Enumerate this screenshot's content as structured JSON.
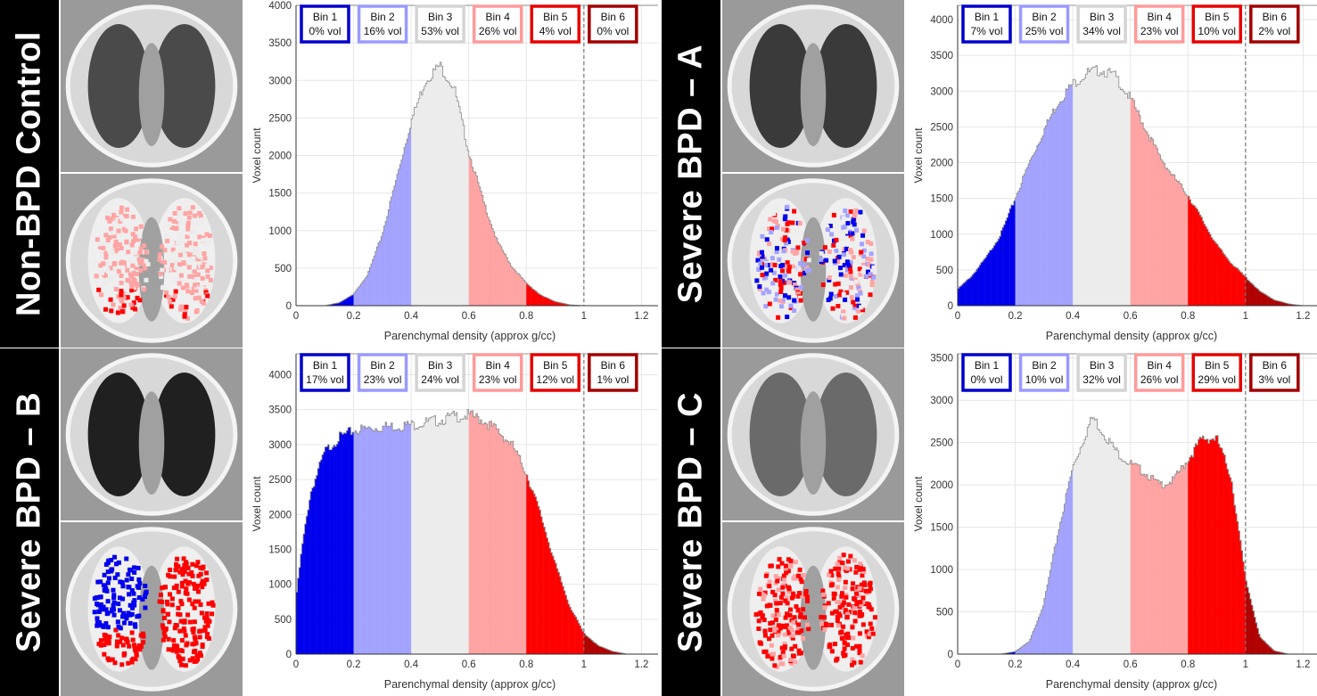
{
  "common": {
    "xlabel": "Parenchymal density (approx g/cc)",
    "ylabel": "Voxel count",
    "xticks": [
      "0",
      "0.2",
      "0.4",
      "0.6",
      "0.8",
      "1",
      "1.2"
    ],
    "bin_colors": [
      "#0000ee",
      "#a3a3ff",
      "#ececec",
      "#ffa3a3",
      "#ff0000",
      "#b00000"
    ],
    "bin_box_colors": [
      "#0000cc",
      "#9a9aff",
      "#d4d4d4",
      "#ff9a9a",
      "#e60000",
      "#a00000"
    ]
  },
  "chart_data": [
    {
      "type": "bar",
      "panel": "Non-BPD Control",
      "title": "",
      "xlabel": "Parenchymal density (approx g/cc)",
      "ylabel": "Voxel count",
      "xlim": [
        0,
        1.27
      ],
      "ylim": [
        0,
        4000
      ],
      "ytick_labels": [
        "0",
        "500",
        "1000",
        "1500",
        "2000",
        "2500",
        "3000",
        "3500",
        "4000"
      ],
      "bins": [
        {
          "name": "Bin 1",
          "label": "0% vol",
          "range": [
            0,
            0.2
          ]
        },
        {
          "name": "Bin 2",
          "label": "16% vol",
          "range": [
            0.2,
            0.4
          ]
        },
        {
          "name": "Bin 3",
          "label": "53% vol",
          "range": [
            0.4,
            0.6
          ]
        },
        {
          "name": "Bin 4",
          "label": "26% vol",
          "range": [
            0.6,
            0.8
          ]
        },
        {
          "name": "Bin 5",
          "label": "4% vol",
          "range": [
            0.8,
            1.0
          ]
        },
        {
          "name": "Bin 6",
          "label": "0% vol",
          "range": [
            1.0,
            1.27
          ]
        }
      ],
      "histogram_x": [
        0.1,
        0.15,
        0.2,
        0.25,
        0.3,
        0.35,
        0.4,
        0.45,
        0.5,
        0.55,
        0.6,
        0.65,
        0.7,
        0.75,
        0.8,
        0.85,
        0.9,
        0.95,
        1.0
      ],
      "histogram_y": [
        0,
        40,
        150,
        420,
        950,
        1700,
        2450,
        3000,
        3200,
        2900,
        2050,
        1400,
        850,
        520,
        300,
        140,
        55,
        12,
        0
      ]
    },
    {
      "type": "bar",
      "panel": "Severe BPD – A",
      "title": "",
      "xlabel": "Parenchymal density (approx g/cc)",
      "ylabel": "Voxel count",
      "xlim": [
        0,
        1.27
      ],
      "ylim": [
        0,
        4200
      ],
      "ytick_labels": [
        "0",
        "500",
        "1000",
        "1500",
        "2000",
        "2500",
        "3000",
        "3500",
        "4000"
      ],
      "bins": [
        {
          "name": "Bin 1",
          "label": "7% vol",
          "range": [
            0,
            0.2
          ]
        },
        {
          "name": "Bin 2",
          "label": "25% vol",
          "range": [
            0.2,
            0.4
          ]
        },
        {
          "name": "Bin 3",
          "label": "34% vol",
          "range": [
            0.4,
            0.6
          ]
        },
        {
          "name": "Bin 4",
          "label": "23% vol",
          "range": [
            0.6,
            0.8
          ]
        },
        {
          "name": "Bin 5",
          "label": "10% vol",
          "range": [
            0.8,
            1.0
          ]
        },
        {
          "name": "Bin 6",
          "label": "2% vol",
          "range": [
            1.0,
            1.27
          ]
        }
      ],
      "histogram_x": [
        0.0,
        0.05,
        0.1,
        0.15,
        0.2,
        0.25,
        0.3,
        0.35,
        0.4,
        0.45,
        0.5,
        0.55,
        0.6,
        0.65,
        0.7,
        0.75,
        0.8,
        0.85,
        0.9,
        0.95,
        1.0,
        1.05,
        1.1,
        1.15,
        1.2
      ],
      "histogram_y": [
        230,
        420,
        680,
        1000,
        1500,
        2000,
        2450,
        2850,
        3100,
        3250,
        3300,
        3200,
        2900,
        2500,
        2100,
        1800,
        1550,
        1200,
        850,
        600,
        400,
        200,
        80,
        25,
        0
      ]
    },
    {
      "type": "bar",
      "panel": "Severe BPD – B",
      "title": "",
      "xlabel": "Parenchymal density (approx g/cc)",
      "ylabel": "Voxel count",
      "xlim": [
        0,
        1.27
      ],
      "ylim": [
        0,
        4300
      ],
      "ytick_labels": [
        "0",
        "500",
        "1000",
        "1500",
        "2000",
        "2500",
        "3000",
        "3500",
        "4000"
      ],
      "bins": [
        {
          "name": "Bin 1",
          "label": "17% vol",
          "range": [
            0,
            0.2
          ]
        },
        {
          "name": "Bin 2",
          "label": "23% vol",
          "range": [
            0.2,
            0.4
          ]
        },
        {
          "name": "Bin 3",
          "label": "24% vol",
          "range": [
            0.4,
            0.6
          ]
        },
        {
          "name": "Bin 4",
          "label": "23% vol",
          "range": [
            0.6,
            0.8
          ]
        },
        {
          "name": "Bin 5",
          "label": "12% vol",
          "range": [
            0.8,
            1.0
          ]
        },
        {
          "name": "Bin 6",
          "label": "1% vol",
          "range": [
            1.0,
            1.27
          ]
        }
      ],
      "histogram_x": [
        0.0,
        0.02,
        0.05,
        0.1,
        0.15,
        0.2,
        0.25,
        0.3,
        0.4,
        0.5,
        0.55,
        0.6,
        0.65,
        0.7,
        0.75,
        0.8,
        0.85,
        0.9,
        0.95,
        1.0,
        1.05,
        1.1,
        1.15
      ],
      "histogram_y": [
        800,
        1500,
        2300,
        2900,
        3100,
        3200,
        3230,
        3250,
        3280,
        3350,
        3400,
        3420,
        3350,
        3200,
        3000,
        2600,
        2000,
        1300,
        700,
        300,
        120,
        40,
        0
      ]
    },
    {
      "type": "bar",
      "panel": "Severe BPD – C",
      "title": "",
      "xlabel": "Parenchymal density (approx g/cc)",
      "ylabel": "Voxel count",
      "xlim": [
        0,
        1.27
      ],
      "ylim": [
        0,
        3550
      ],
      "ytick_labels": [
        "0",
        "500",
        "1000",
        "1500",
        "2000",
        "2500",
        "3000",
        "3500"
      ],
      "bins": [
        {
          "name": "Bin 1",
          "label": "0% vol",
          "range": [
            0,
            0.2
          ]
        },
        {
          "name": "Bin 2",
          "label": "10% vol",
          "range": [
            0.2,
            0.4
          ]
        },
        {
          "name": "Bin 3",
          "label": "32% vol",
          "range": [
            0.4,
            0.6
          ]
        },
        {
          "name": "Bin 4",
          "label": "26% vol",
          "range": [
            0.6,
            0.8
          ]
        },
        {
          "name": "Bin 5",
          "label": "29% vol",
          "range": [
            0.8,
            1.0
          ]
        },
        {
          "name": "Bin 6",
          "label": "3% vol",
          "range": [
            1.0,
            1.27
          ]
        }
      ],
      "histogram_x": [
        0.15,
        0.2,
        0.25,
        0.3,
        0.35,
        0.4,
        0.45,
        0.47,
        0.5,
        0.55,
        0.6,
        0.65,
        0.7,
        0.75,
        0.8,
        0.85,
        0.9,
        0.95,
        1.0,
        1.05,
        1.1,
        1.15
      ],
      "histogram_y": [
        0,
        30,
        150,
        600,
        1450,
        2200,
        2650,
        2800,
        2650,
        2400,
        2250,
        2150,
        2000,
        2050,
        2300,
        2550,
        2550,
        2100,
        900,
        200,
        40,
        0
      ]
    }
  ]
}
